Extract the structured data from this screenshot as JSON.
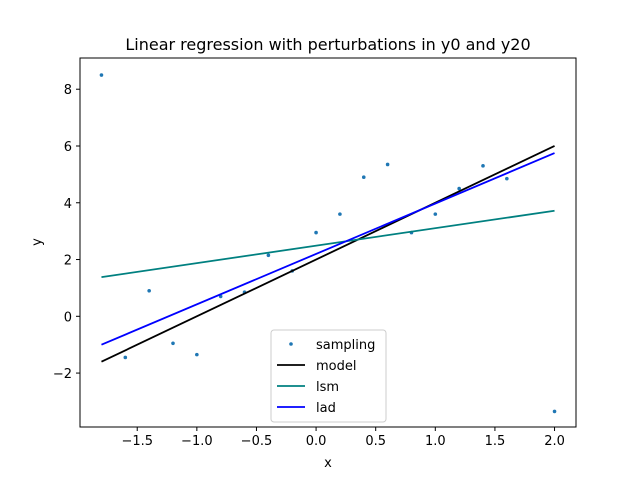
{
  "chart_data": {
    "type": "scatter",
    "title": "Linear regression with perturbations in y0 and y20",
    "xlabel": "x",
    "ylabel": "y",
    "xlim": [
      -1.98,
      2.18
    ],
    "ylim": [
      -3.9,
      9.1
    ],
    "xticks": [
      -1.5,
      -1.0,
      -0.5,
      0.0,
      0.5,
      1.0,
      1.5,
      2.0
    ],
    "xtick_labels": [
      "−1.5",
      "−1.0",
      "−0.5",
      "0.0",
      "0.5",
      "1.0",
      "1.5",
      "2.0"
    ],
    "yticks": [
      -2,
      0,
      2,
      4,
      6,
      8
    ],
    "ytick_labels": [
      "−2",
      "0",
      "2",
      "4",
      "6",
      "8"
    ],
    "grid": false,
    "legend_position": "bottom-center",
    "scatter": {
      "name": "sampling",
      "color": "#1f77b4",
      "points": [
        [
          -1.8,
          8.5
        ],
        [
          -1.6,
          -1.45
        ],
        [
          -1.4,
          0.9
        ],
        [
          -1.2,
          -0.95
        ],
        [
          -1.0,
          -1.35
        ],
        [
          -0.8,
          0.7
        ],
        [
          -0.6,
          0.85
        ],
        [
          -0.4,
          2.15
        ],
        [
          -0.2,
          1.6
        ],
        [
          0.0,
          2.95
        ],
        [
          0.2,
          3.6
        ],
        [
          0.4,
          4.9
        ],
        [
          0.6,
          5.35
        ],
        [
          0.8,
          2.95
        ],
        [
          1.0,
          3.6
        ],
        [
          1.2,
          4.5
        ],
        [
          1.4,
          5.3
        ],
        [
          1.6,
          4.85
        ],
        [
          2.0,
          -3.35
        ]
      ]
    },
    "lines": [
      {
        "name": "model",
        "color": "#000000",
        "x": [
          -1.8,
          2.0
        ],
        "y": [
          -1.6,
          6.0
        ]
      },
      {
        "name": "lsm",
        "color": "#008080",
        "x": [
          -1.8,
          2.0
        ],
        "y": [
          1.38,
          3.72
        ]
      },
      {
        "name": "lad",
        "color": "#0000ff",
        "x": [
          -1.8,
          2.0
        ],
        "y": [
          -1.0,
          5.75
        ]
      }
    ]
  }
}
